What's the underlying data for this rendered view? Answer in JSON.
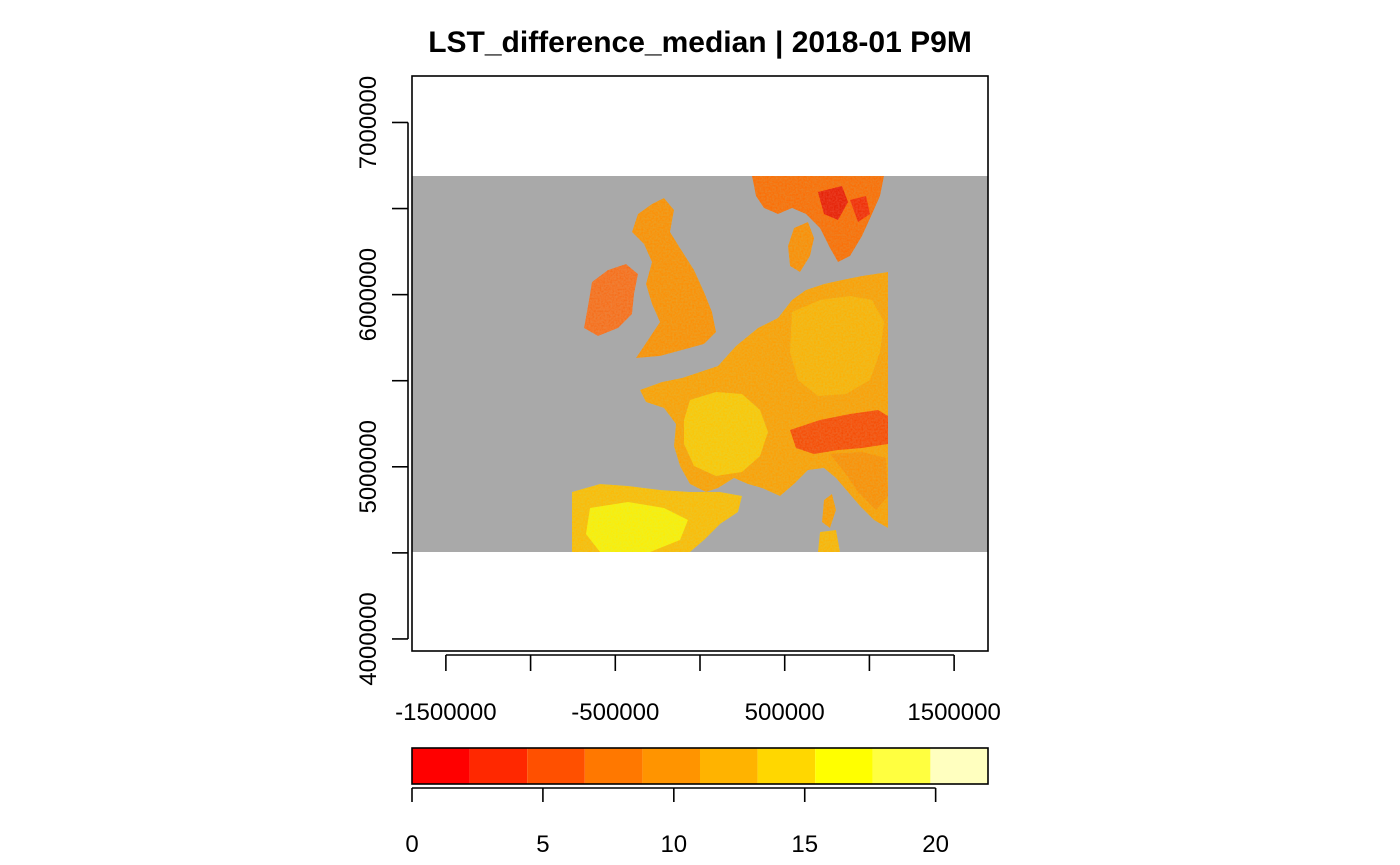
{
  "map": {
    "title": "LST_difference_median | 2018-01 P9M",
    "x_ticks": [
      -1500000,
      -1000000,
      -500000,
      0,
      500000,
      1000000,
      1500000
    ],
    "x_tick_labels": [
      "-1500000",
      "-500000",
      "500000",
      "1500000"
    ],
    "y_ticks": [
      4000000,
      4500000,
      5000000,
      5500000,
      6000000,
      6500000,
      7000000
    ],
    "y_tick_labels": [
      "4000000",
      "5000000",
      "6000000",
      "7000000"
    ],
    "xlim": [
      -1700000,
      1700000
    ],
    "ylim": [
      3930000,
      7270000
    ],
    "data_extent": {
      "x": [
        -1700000,
        1700000
      ],
      "y": [
        4550000,
        6680000
      ]
    },
    "no_data_color": "#A9A9A9",
    "background_color": "#FFFFFF"
  },
  "legend": {
    "breaks": [
      0,
      2.2,
      4.4,
      6.6,
      8.8,
      11,
      13.2,
      15.4,
      17.6,
      19.8,
      22
    ],
    "tick_values": [
      0,
      5,
      10,
      15,
      20
    ],
    "tick_labels": [
      "0",
      "5",
      "10",
      "15",
      "20"
    ],
    "colors": [
      "#FF0000",
      "#FF2800",
      "#FF5000",
      "#FF7800",
      "#FF9400",
      "#FFB300",
      "#FFD700",
      "#FFFF00",
      "#FFFF40",
      "#FFFFBF"
    ]
  }
}
